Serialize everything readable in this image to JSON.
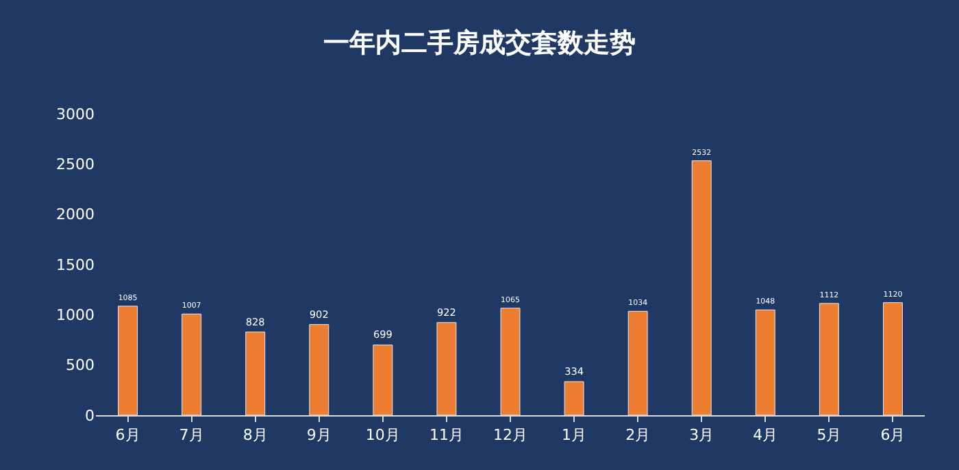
{
  "chart_data": {
    "type": "bar",
    "title": "一年内二手房成交套数走势",
    "categories": [
      "6月",
      "7月",
      "8月",
      "9月",
      "10月",
      "11月",
      "12月",
      "1月",
      "2月",
      "3月",
      "4月",
      "5月",
      "6月"
    ],
    "values": [
      1085,
      1007,
      828,
      902,
      699,
      922,
      1065,
      334,
      1034,
      2532,
      1048,
      1112,
      1120
    ],
    "color": "#ed7d31",
    "ylim": [
      0,
      3000
    ],
    "yticks": [
      0,
      500,
      1000,
      1500,
      2000,
      2500,
      3000
    ],
    "grid": false,
    "data_labels": true,
    "legend": false
  }
}
